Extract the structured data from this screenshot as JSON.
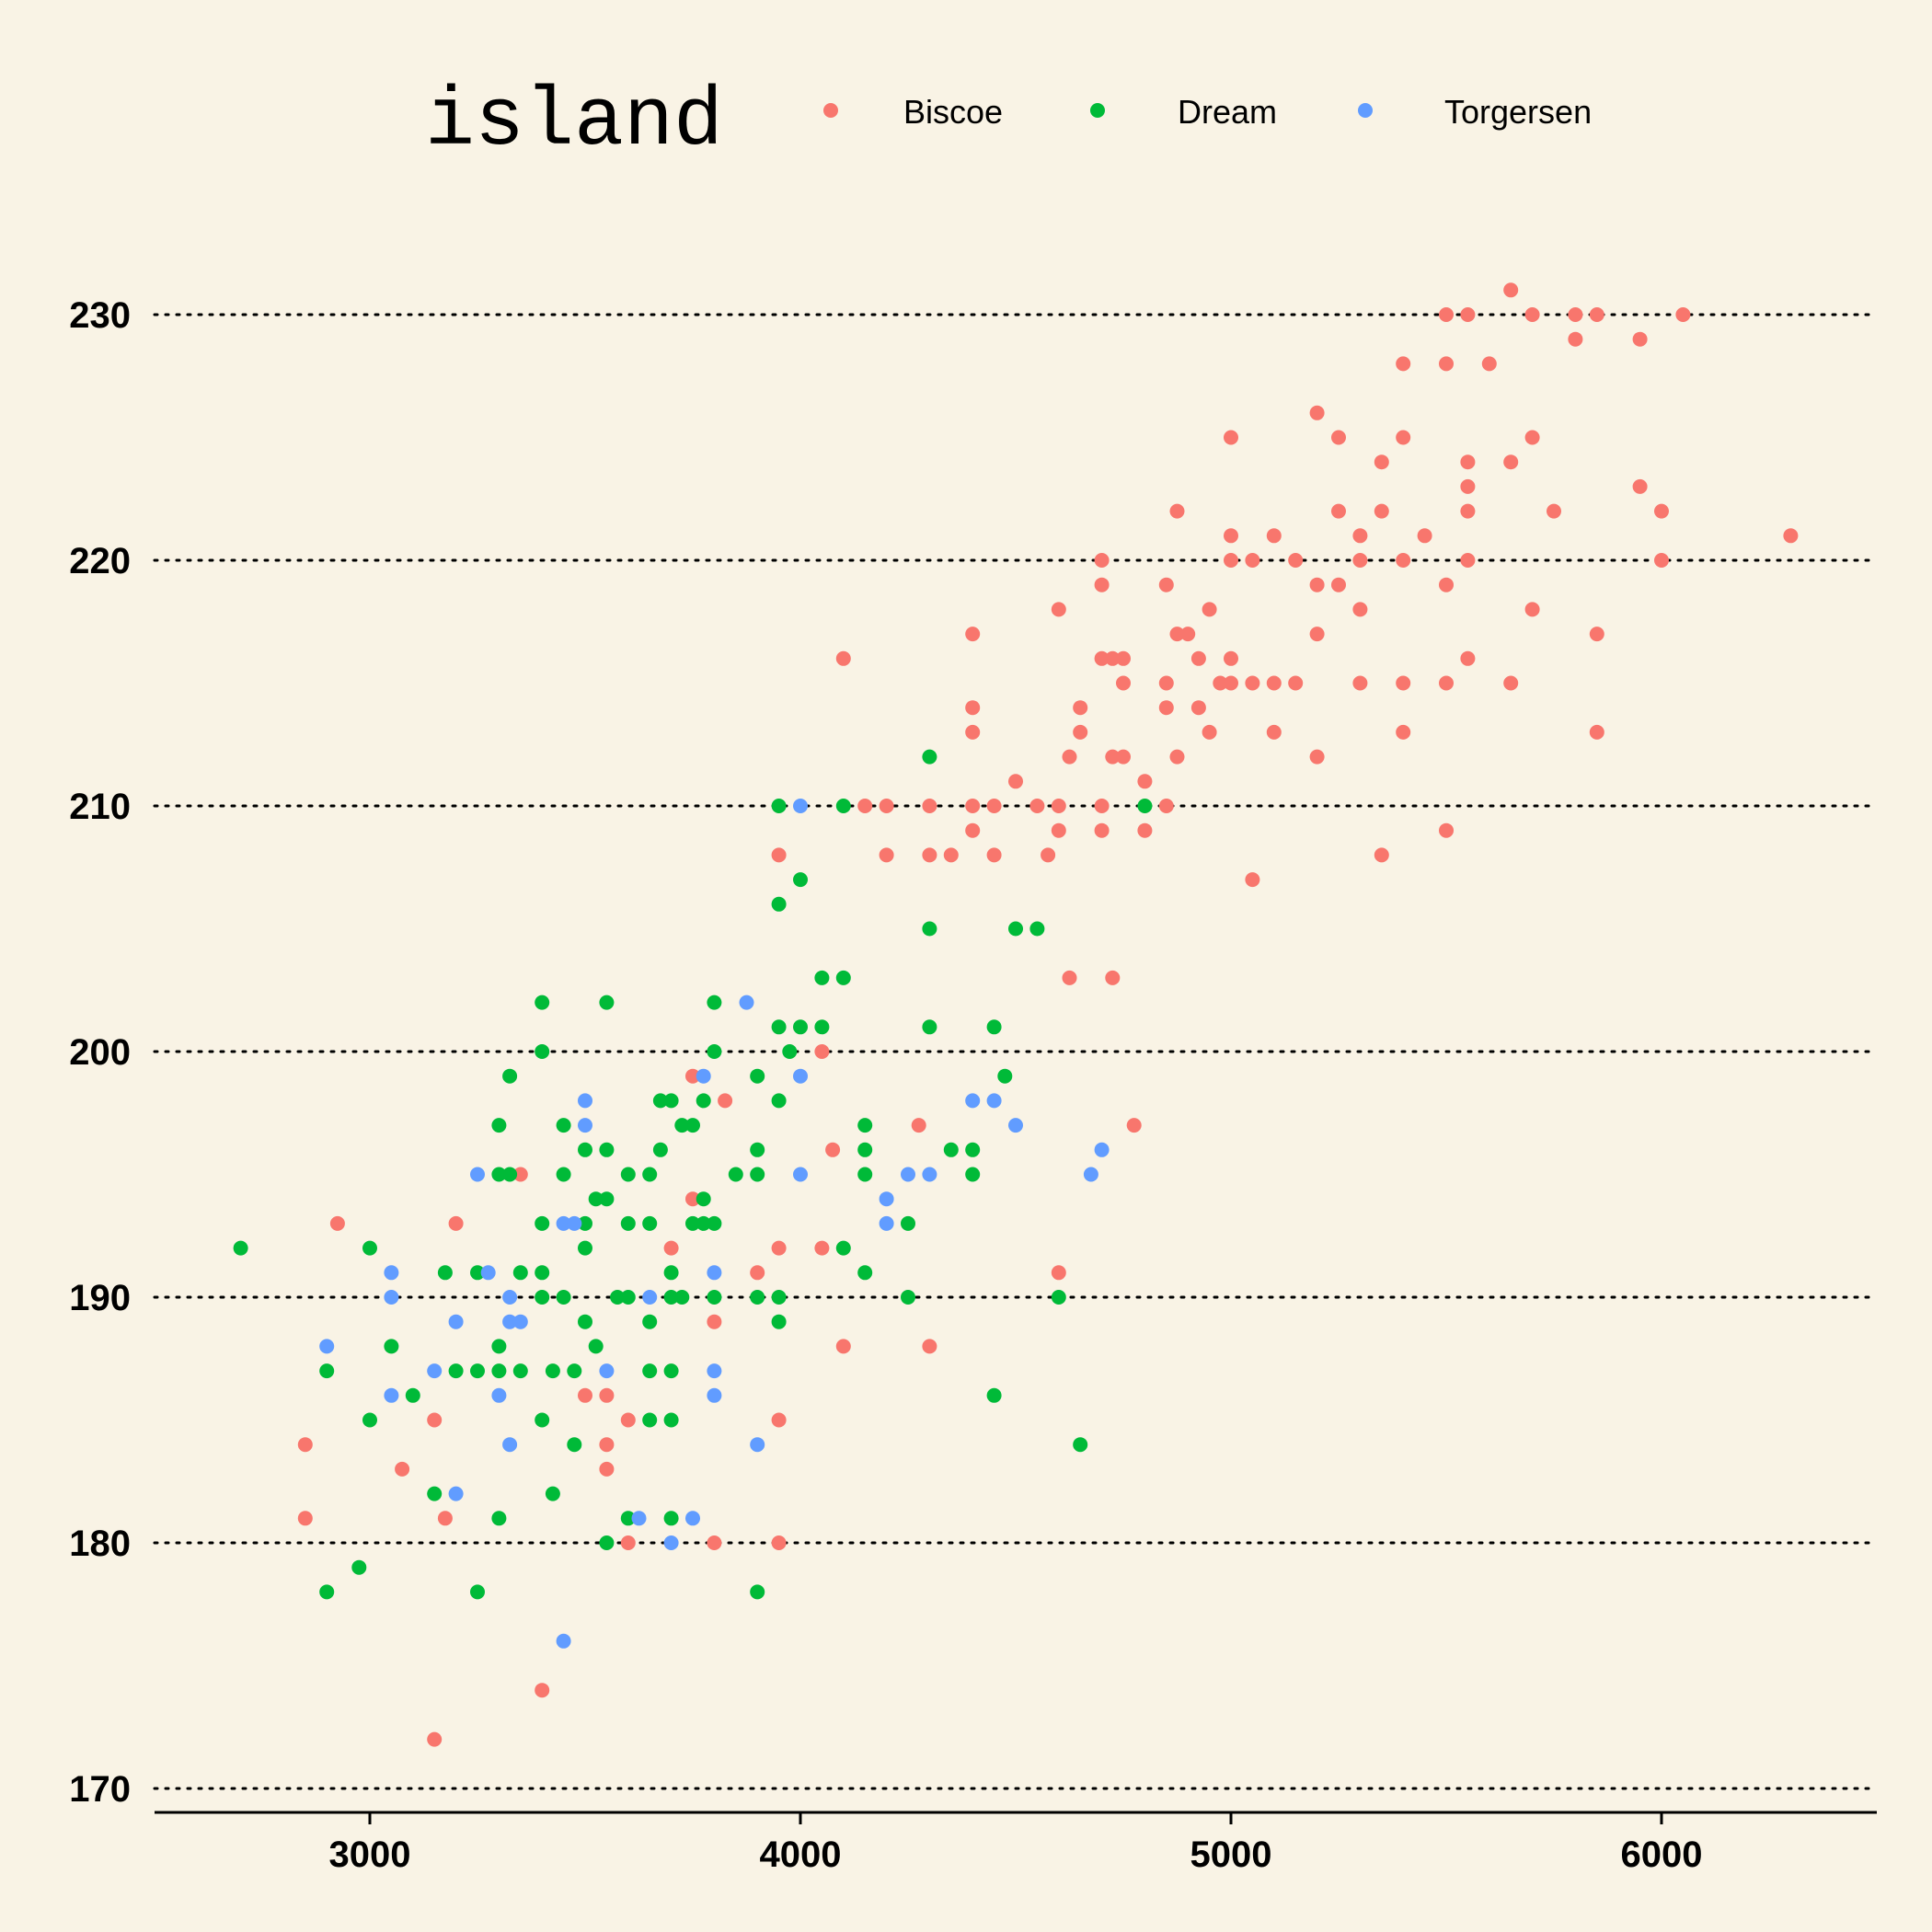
{
  "chart_data": {
    "type": "scatter",
    "title": "",
    "xlabel": "",
    "ylabel": "",
    "xlim": [
      2500,
      6500
    ],
    "ylim": [
      169,
      234
    ],
    "x_ticks": [
      "3000",
      "4000",
      "5000",
      "6000"
    ],
    "y_ticks": [
      "170",
      "180",
      "190",
      "200",
      "210",
      "220",
      "230"
    ],
    "grid": "horizontal dotted",
    "legend": {
      "title": "island",
      "placement": "top",
      "entries": [
        {
          "label": "Biscoe",
          "color": "#F8766D"
        },
        {
          "label": "Dream",
          "color": "#00BA38"
        },
        {
          "label": "Torgersen",
          "color": "#619CFF"
        }
      ]
    },
    "series": [
      {
        "name": "Biscoe",
        "color": "#F8766D",
        "points": [
          [
            2850,
            184
          ],
          [
            2850,
            181
          ],
          [
            2925,
            193
          ],
          [
            3075,
            183
          ],
          [
            3150,
            185
          ],
          [
            3150,
            172
          ],
          [
            3175,
            181
          ],
          [
            3200,
            193
          ],
          [
            3350,
            195
          ],
          [
            3400,
            174
          ],
          [
            3550,
            186
          ],
          [
            3500,
            186
          ],
          [
            3550,
            184
          ],
          [
            3550,
            183
          ],
          [
            3600,
            185
          ],
          [
            3600,
            180
          ],
          [
            3700,
            192
          ],
          [
            3750,
            199
          ],
          [
            3750,
            194
          ],
          [
            3800,
            189
          ],
          [
            3800,
            180
          ],
          [
            3825,
            198
          ],
          [
            3900,
            191
          ],
          [
            3950,
            192
          ],
          [
            3950,
            185
          ],
          [
            3950,
            180
          ],
          [
            3950,
            208
          ],
          [
            4050,
            200
          ],
          [
            4050,
            192
          ],
          [
            4075,
            196
          ],
          [
            4100,
            188
          ],
          [
            4100,
            216
          ],
          [
            4150,
            210
          ],
          [
            4200,
            210
          ],
          [
            4200,
            208
          ],
          [
            4275,
            197
          ],
          [
            4300,
            210
          ],
          [
            4300,
            208
          ],
          [
            4300,
            188
          ],
          [
            4350,
            208
          ],
          [
            4400,
            217
          ],
          [
            4400,
            214
          ],
          [
            4400,
            213
          ],
          [
            4400,
            210
          ],
          [
            4400,
            209
          ],
          [
            4450,
            210
          ],
          [
            4450,
            208
          ],
          [
            4500,
            211
          ],
          [
            4550,
            210
          ],
          [
            4575,
            208
          ],
          [
            4600,
            218
          ],
          [
            4600,
            210
          ],
          [
            4600,
            209
          ],
          [
            4600,
            191
          ],
          [
            4625,
            212
          ],
          [
            4625,
            203
          ],
          [
            4650,
            214
          ],
          [
            4650,
            213
          ],
          [
            4700,
            220
          ],
          [
            4700,
            219
          ],
          [
            4700,
            216
          ],
          [
            4700,
            210
          ],
          [
            4700,
            209
          ],
          [
            4725,
            216
          ],
          [
            4725,
            212
          ],
          [
            4725,
            203
          ],
          [
            4750,
            216
          ],
          [
            4750,
            215
          ],
          [
            4750,
            212
          ],
          [
            4775,
            197
          ],
          [
            4800,
            211
          ],
          [
            4800,
            209
          ],
          [
            4850,
            219
          ],
          [
            4850,
            215
          ],
          [
            4850,
            214
          ],
          [
            4850,
            210
          ],
          [
            4875,
            222
          ],
          [
            4875,
            217
          ],
          [
            4875,
            212
          ],
          [
            4900,
            217
          ],
          [
            4925,
            216
          ],
          [
            4925,
            214
          ],
          [
            4950,
            218
          ],
          [
            4950,
            213
          ],
          [
            4975,
            215
          ],
          [
            5000,
            225
          ],
          [
            5000,
            221
          ],
          [
            5000,
            220
          ],
          [
            5000,
            216
          ],
          [
            5000,
            215
          ],
          [
            5050,
            220
          ],
          [
            5050,
            215
          ],
          [
            5050,
            207
          ],
          [
            5100,
            221
          ],
          [
            5100,
            215
          ],
          [
            5100,
            213
          ],
          [
            5150,
            220
          ],
          [
            5150,
            215
          ],
          [
            5200,
            226
          ],
          [
            5200,
            219
          ],
          [
            5200,
            217
          ],
          [
            5200,
            212
          ],
          [
            5250,
            225
          ],
          [
            5250,
            222
          ],
          [
            5250,
            219
          ],
          [
            5300,
            221
          ],
          [
            5300,
            220
          ],
          [
            5300,
            218
          ],
          [
            5300,
            215
          ],
          [
            5350,
            224
          ],
          [
            5350,
            222
          ],
          [
            5350,
            208
          ],
          [
            5400,
            228
          ],
          [
            5400,
            225
          ],
          [
            5400,
            220
          ],
          [
            5400,
            215
          ],
          [
            5400,
            213
          ],
          [
            5450,
            221
          ],
          [
            5500,
            230
          ],
          [
            5500,
            228
          ],
          [
            5500,
            219
          ],
          [
            5500,
            215
          ],
          [
            5500,
            209
          ],
          [
            5550,
            230
          ],
          [
            5550,
            224
          ],
          [
            5550,
            223
          ],
          [
            5550,
            222
          ],
          [
            5550,
            220
          ],
          [
            5550,
            216
          ],
          [
            5600,
            228
          ],
          [
            5650,
            231
          ],
          [
            5650,
            224
          ],
          [
            5650,
            215
          ],
          [
            5700,
            230
          ],
          [
            5700,
            225
          ],
          [
            5700,
            218
          ],
          [
            5750,
            222
          ],
          [
            5800,
            230
          ],
          [
            5800,
            229
          ],
          [
            5850,
            230
          ],
          [
            5850,
            217
          ],
          [
            5850,
            213
          ],
          [
            5950,
            229
          ],
          [
            5950,
            223
          ],
          [
            6000,
            222
          ],
          [
            6000,
            220
          ],
          [
            6050,
            230
          ],
          [
            6300,
            221
          ]
        ]
      },
      {
        "name": "Dream",
        "color": "#00BA38",
        "points": [
          [
            2700,
            192
          ],
          [
            2900,
            187
          ],
          [
            2900,
            178
          ],
          [
            2975,
            179
          ],
          [
            3000,
            192
          ],
          [
            3000,
            185
          ],
          [
            3050,
            188
          ],
          [
            3100,
            186
          ],
          [
            3150,
            182
          ],
          [
            3175,
            191
          ],
          [
            3200,
            187
          ],
          [
            3250,
            191
          ],
          [
            3250,
            187
          ],
          [
            3250,
            178
          ],
          [
            3300,
            197
          ],
          [
            3300,
            195
          ],
          [
            3300,
            188
          ],
          [
            3300,
            187
          ],
          [
            3300,
            181
          ],
          [
            3325,
            199
          ],
          [
            3325,
            195
          ],
          [
            3350,
            191
          ],
          [
            3350,
            187
          ],
          [
            3400,
            202
          ],
          [
            3400,
            200
          ],
          [
            3400,
            193
          ],
          [
            3400,
            191
          ],
          [
            3400,
            190
          ],
          [
            3400,
            185
          ],
          [
            3425,
            187
          ],
          [
            3425,
            182
          ],
          [
            3450,
            197
          ],
          [
            3450,
            195
          ],
          [
            3450,
            190
          ],
          [
            3475,
            187
          ],
          [
            3475,
            184
          ],
          [
            3500,
            196
          ],
          [
            3500,
            193
          ],
          [
            3500,
            192
          ],
          [
            3500,
            189
          ],
          [
            3525,
            194
          ],
          [
            3525,
            188
          ],
          [
            3550,
            202
          ],
          [
            3550,
            196
          ],
          [
            3550,
            194
          ],
          [
            3550,
            180
          ],
          [
            3575,
            190
          ],
          [
            3600,
            195
          ],
          [
            3600,
            193
          ],
          [
            3600,
            190
          ],
          [
            3600,
            181
          ],
          [
            3650,
            195
          ],
          [
            3650,
            193
          ],
          [
            3650,
            189
          ],
          [
            3650,
            187
          ],
          [
            3650,
            185
          ],
          [
            3675,
            198
          ],
          [
            3675,
            196
          ],
          [
            3700,
            198
          ],
          [
            3700,
            191
          ],
          [
            3700,
            190
          ],
          [
            3700,
            187
          ],
          [
            3700,
            185
          ],
          [
            3700,
            181
          ],
          [
            3725,
            197
          ],
          [
            3725,
            190
          ],
          [
            3750,
            197
          ],
          [
            3750,
            193
          ],
          [
            3775,
            198
          ],
          [
            3775,
            194
          ],
          [
            3775,
            193
          ],
          [
            3800,
            202
          ],
          [
            3800,
            200
          ],
          [
            3800,
            193
          ],
          [
            3800,
            190
          ],
          [
            3850,
            195
          ],
          [
            3900,
            199
          ],
          [
            3900,
            196
          ],
          [
            3900,
            195
          ],
          [
            3900,
            190
          ],
          [
            3900,
            178
          ],
          [
            3950,
            210
          ],
          [
            3950,
            206
          ],
          [
            3950,
            201
          ],
          [
            3950,
            198
          ],
          [
            3950,
            190
          ],
          [
            3950,
            189
          ],
          [
            3975,
            200
          ],
          [
            4000,
            207
          ],
          [
            4000,
            201
          ],
          [
            4050,
            203
          ],
          [
            4050,
            201
          ],
          [
            4100,
            210
          ],
          [
            4100,
            203
          ],
          [
            4100,
            192
          ],
          [
            4150,
            197
          ],
          [
            4150,
            196
          ],
          [
            4150,
            195
          ],
          [
            4150,
            191
          ],
          [
            4250,
            193
          ],
          [
            4250,
            190
          ],
          [
            4300,
            212
          ],
          [
            4300,
            205
          ],
          [
            4300,
            201
          ],
          [
            4350,
            196
          ],
          [
            4400,
            196
          ],
          [
            4400,
            195
          ],
          [
            4450,
            201
          ],
          [
            4450,
            186
          ],
          [
            4475,
            199
          ],
          [
            4500,
            205
          ],
          [
            4550,
            205
          ],
          [
            4600,
            190
          ],
          [
            4650,
            184
          ],
          [
            4800,
            210
          ]
        ]
      },
      {
        "name": "Torgersen",
        "color": "#619CFF",
        "points": [
          [
            2900,
            188
          ],
          [
            3050,
            191
          ],
          [
            3050,
            190
          ],
          [
            3050,
            186
          ],
          [
            3150,
            187
          ],
          [
            3200,
            189
          ],
          [
            3200,
            182
          ],
          [
            3250,
            195
          ],
          [
            3275,
            191
          ],
          [
            3300,
            186
          ],
          [
            3325,
            190
          ],
          [
            3325,
            189
          ],
          [
            3325,
            184
          ],
          [
            3350,
            189
          ],
          [
            3450,
            193
          ],
          [
            3450,
            176
          ],
          [
            3475,
            193
          ],
          [
            3500,
            198
          ],
          [
            3500,
            197
          ],
          [
            3550,
            187
          ],
          [
            3625,
            181
          ],
          [
            3650,
            190
          ],
          [
            3700,
            180
          ],
          [
            3750,
            181
          ],
          [
            3775,
            199
          ],
          [
            3800,
            191
          ],
          [
            3800,
            187
          ],
          [
            3800,
            186
          ],
          [
            3875,
            202
          ],
          [
            3900,
            184
          ],
          [
            4000,
            210
          ],
          [
            4000,
            199
          ],
          [
            4000,
            195
          ],
          [
            4200,
            194
          ],
          [
            4200,
            193
          ],
          [
            4250,
            195
          ],
          [
            4300,
            195
          ],
          [
            4400,
            198
          ],
          [
            4450,
            198
          ],
          [
            4500,
            197
          ],
          [
            4675,
            195
          ],
          [
            4700,
            196
          ]
        ]
      }
    ]
  }
}
